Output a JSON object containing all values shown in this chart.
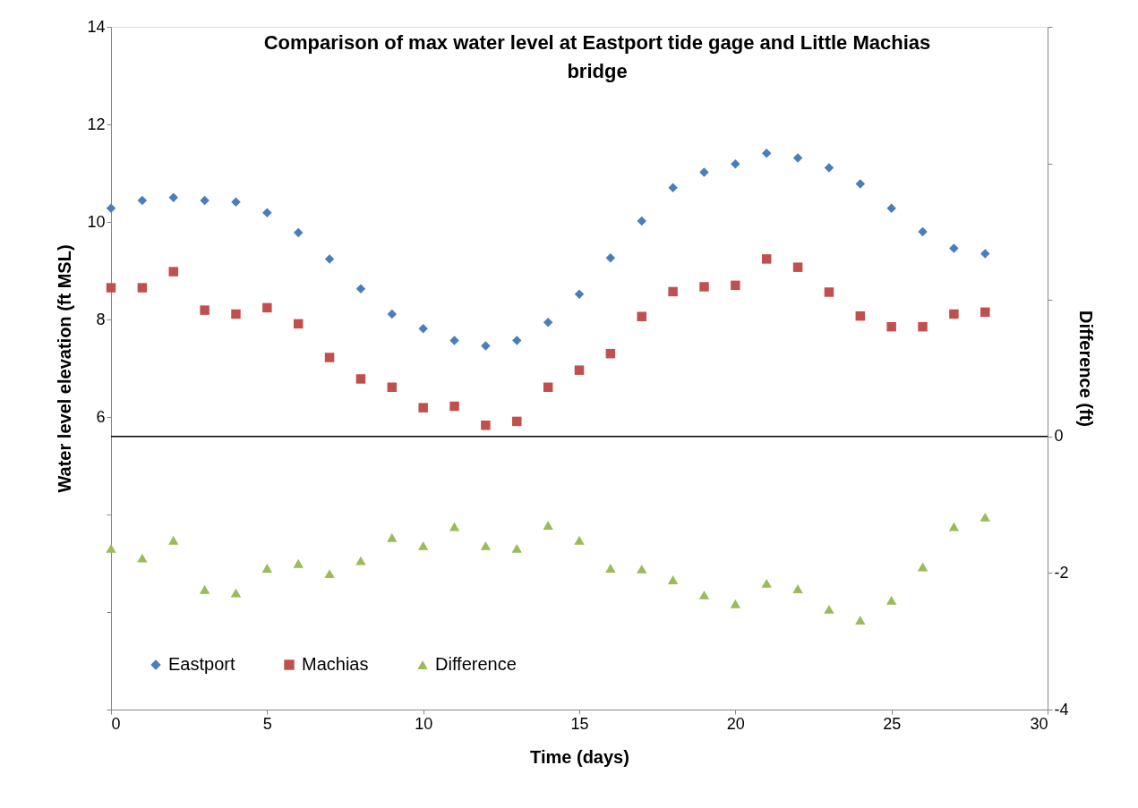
{
  "chart_data": {
    "type": "scatter",
    "title": "Comparison of max water level at Eastport tide gage and Little Machias bridge",
    "xlabel": "Time (days)",
    "ylabel": "Water level elevation (ft MSL)",
    "y2label": "Difference (ft)",
    "x": [
      0,
      1,
      2,
      3,
      4,
      5,
      6,
      7,
      8,
      9,
      10,
      11,
      12,
      13,
      14,
      15,
      16,
      17,
      18,
      19,
      20,
      21,
      22,
      23,
      24,
      25,
      26,
      27,
      28
    ],
    "xlim": [
      0,
      30
    ],
    "xticks": [
      0,
      5,
      10,
      15,
      20,
      25,
      30
    ],
    "ylim": [
      0,
      14
    ],
    "yticks": [
      {
        "value": 0,
        "label": null
      },
      {
        "value": 2,
        "label": null
      },
      {
        "value": 4,
        "label": null
      },
      6,
      8,
      10,
      12,
      14
    ],
    "y2lim": [
      -4,
      6
    ],
    "y2ticks": [
      -4,
      -2,
      0,
      {
        "value": 2,
        "label": null
      },
      {
        "value": 4,
        "label": null
      },
      {
        "value": 6,
        "label": null
      }
    ],
    "series": [
      {
        "name": "Eastport",
        "color": "#4a7ebb",
        "marker": "diamond",
        "values": [
          10.28,
          10.44,
          10.5,
          10.44,
          10.41,
          10.19,
          9.78,
          9.24,
          8.63,
          8.11,
          7.81,
          7.57,
          7.46,
          7.57,
          7.94,
          8.52,
          9.26,
          10.02,
          10.7,
          11.02,
          11.19,
          11.41,
          11.31,
          11.11,
          10.78,
          10.28,
          9.8,
          9.46,
          9.35
        ]
      },
      {
        "name": "Machias",
        "color": "#c0504d",
        "marker": "square",
        "values": [
          8.65,
          8.65,
          8.98,
          8.19,
          8.11,
          8.24,
          7.91,
          7.22,
          6.78,
          6.61,
          6.19,
          6.22,
          5.83,
          5.91,
          6.61,
          6.96,
          7.3,
          8.06,
          8.57,
          8.67,
          8.7,
          9.24,
          9.07,
          8.56,
          8.07,
          7.85,
          7.85,
          8.11,
          8.15
        ]
      },
      {
        "name": "Difference",
        "color": "#9bbb59",
        "marker": "triangle",
        "axis": "y2",
        "values": [
          -1.64,
          -1.78,
          -1.52,
          -2.24,
          -2.29,
          -1.93,
          -1.86,
          -2.01,
          -1.82,
          -1.48,
          -1.6,
          -1.32,
          -1.6,
          -1.64,
          -1.3,
          -1.52,
          -1.93,
          -1.94,
          -2.1,
          -2.32,
          -2.45,
          -2.15,
          -2.23,
          -2.53,
          -2.69,
          -2.4,
          -1.91,
          -1.32,
          -1.18
        ]
      }
    ],
    "ref_lines": [
      {
        "axis": "y2",
        "value": 0,
        "color": "#000000"
      }
    ],
    "grid": false,
    "legend": "bottom left"
  }
}
